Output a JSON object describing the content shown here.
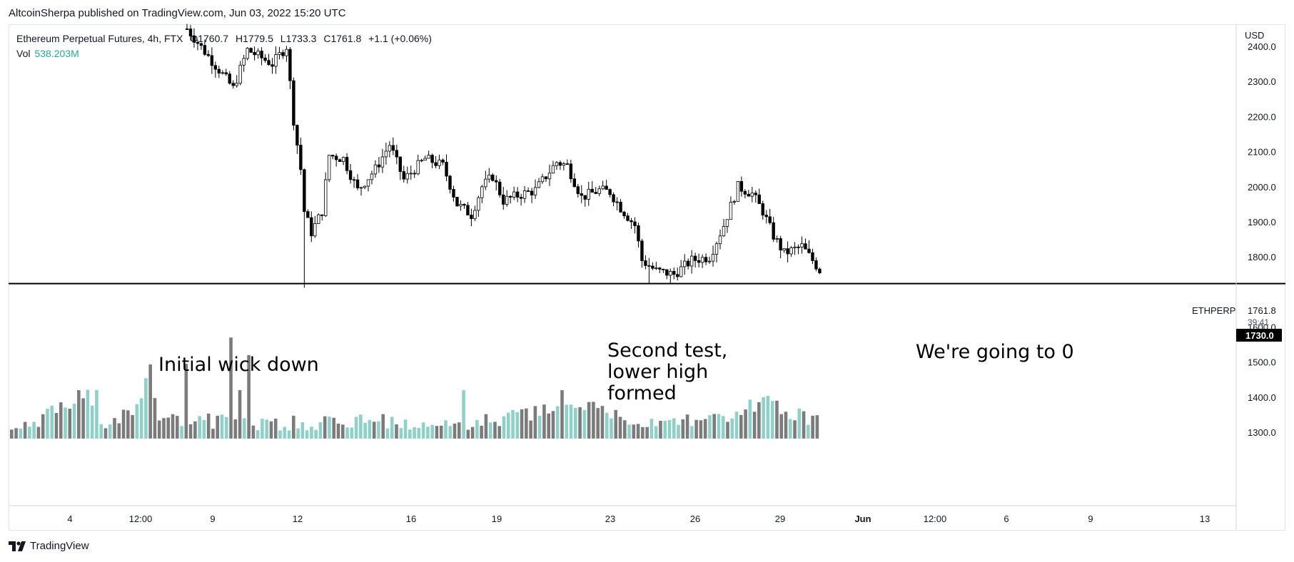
{
  "header": {
    "published": "AltcoinSherpa published on TradingView.com, Jun 03, 2022 15:20 UTC"
  },
  "legend": {
    "symbol": "Ethereum Perpetual Futures, 4h, FTX",
    "open_label": "O",
    "open": "1760.7",
    "high_label": "H",
    "high": "1779.5",
    "low_label": "L",
    "low": "1733.3",
    "close_label": "C",
    "close": "1761.8",
    "change": "+1.1 (+0.06%)",
    "vol_label": "Vol",
    "vol_value": "538.203M"
  },
  "price_axis": {
    "currency": "USD",
    "ticks": [
      "2400.0",
      "2300.0",
      "2200.0",
      "2100.0",
      "2000.0",
      "1900.0",
      "1800.0",
      "1600.0",
      "1500.0",
      "1400.0",
      "1300.0"
    ],
    "symbol_tag": "ETHPERP",
    "last_price": "1761.8",
    "countdown": "39:41",
    "line_price": "1730.0"
  },
  "time_axis": {
    "labels": [
      "4",
      "12:00",
      "9",
      "12",
      "16",
      "19",
      "23",
      "26",
      "29",
      "Jun",
      "12:00",
      "6",
      "9",
      "13"
    ]
  },
  "annotations": {
    "initial": "Initial wick down",
    "second": [
      "Second test,",
      "lower high",
      "formed"
    ],
    "zero": "We're going to 0"
  },
  "footer": {
    "brand": "TradingView"
  },
  "colors": {
    "candle_up_fill": "#ffffff",
    "candle_down_fill": "#000000",
    "candle_border": "#000000",
    "volume_up": "#8fd0c8",
    "volume_down": "#7b7b7b",
    "support_line": "#000000",
    "vol_text": "#26a69a"
  },
  "chart_data": {
    "type": "candlestick",
    "timeframe": "4h",
    "y_unit": "USD",
    "ylim": [
      1270,
      2450
    ],
    "x_range_days": [
      "May 31 2022 … Jun 13 2022 (days shown as 4 .. 13 on axis)"
    ],
    "support_level": 1730.0,
    "price_waypoints": [
      {
        "i": 0,
        "p": 2450
      },
      {
        "i": 10,
        "p": 2320
      },
      {
        "i": 13,
        "p": 2280
      },
      {
        "i": 17,
        "p": 2390
      },
      {
        "i": 24,
        "p": 2350
      },
      {
        "i": 28,
        "p": 2400
      },
      {
        "i": 30,
        "p": 2190
      },
      {
        "i": 32,
        "p": 2050
      },
      {
        "i": 33,
        "p": 1930
      },
      {
        "i": 35,
        "p": 1870
      },
      {
        "i": 38,
        "p": 1930
      },
      {
        "i": 40,
        "p": 2090
      },
      {
        "i": 44,
        "p": 2080
      },
      {
        "i": 48,
        "p": 1990
      },
      {
        "i": 53,
        "p": 2050
      },
      {
        "i": 57,
        "p": 2120
      },
      {
        "i": 61,
        "p": 2020
      },
      {
        "i": 67,
        "p": 2080
      },
      {
        "i": 72,
        "p": 2060
      },
      {
        "i": 76,
        "p": 1950
      },
      {
        "i": 80,
        "p": 1920
      },
      {
        "i": 83,
        "p": 2000
      },
      {
        "i": 86,
        "p": 2030
      },
      {
        "i": 89,
        "p": 1960
      },
      {
        "i": 93,
        "p": 1975
      },
      {
        "i": 98,
        "p": 1990
      },
      {
        "i": 104,
        "p": 2070
      },
      {
        "i": 107,
        "p": 2060
      },
      {
        "i": 111,
        "p": 1970
      },
      {
        "i": 116,
        "p": 1990
      },
      {
        "i": 119,
        "p": 1985
      },
      {
        "i": 122,
        "p": 1940
      },
      {
        "i": 126,
        "p": 1890
      },
      {
        "i": 128,
        "p": 1790
      },
      {
        "i": 132,
        "p": 1760
      },
      {
        "i": 137,
        "p": 1750
      },
      {
        "i": 142,
        "p": 1790
      },
      {
        "i": 147,
        "p": 1800
      },
      {
        "i": 151,
        "p": 1890
      },
      {
        "i": 155,
        "p": 2000
      },
      {
        "i": 159,
        "p": 1980
      },
      {
        "i": 162,
        "p": 1930
      },
      {
        "i": 165,
        "p": 1860
      },
      {
        "i": 168,
        "p": 1810
      },
      {
        "i": 173,
        "p": 1830
      },
      {
        "i": 176,
        "p": 1790
      },
      {
        "i": 178,
        "p": 1762
      }
    ],
    "volume_waypoints": [
      {
        "i": 0,
        "v": 1300
      },
      {
        "i": 6,
        "v": 1320
      },
      {
        "i": 12,
        "v": 1380
      },
      {
        "i": 17,
        "v": 1400
      },
      {
        "i": 20,
        "v": 1300
      },
      {
        "i": 27,
        "v": 1360
      },
      {
        "i": 31,
        "v": 1470
      },
      {
        "i": 33,
        "v": 1350
      },
      {
        "i": 40,
        "v": 1330
      },
      {
        "i": 60,
        "v": 1320
      },
      {
        "i": 80,
        "v": 1330
      },
      {
        "i": 98,
        "v": 1310
      },
      {
        "i": 112,
        "v": 1340
      },
      {
        "i": 128,
        "v": 1370
      },
      {
        "i": 140,
        "v": 1320
      },
      {
        "i": 150,
        "v": 1330
      },
      {
        "i": 160,
        "v": 1330
      },
      {
        "i": 168,
        "v": 1390
      },
      {
        "i": 178,
        "v": 1330
      }
    ],
    "volume_spikes": [
      {
        "i": 15,
        "v": 1420
      },
      {
        "i": 19,
        "v": 1420
      },
      {
        "i": 39,
        "v": 1495
      },
      {
        "i": 49,
        "v": 1570
      },
      {
        "i": 53,
        "v": 1520
      },
      {
        "i": 51,
        "v": 1420
      },
      {
        "i": 101,
        "v": 1420
      },
      {
        "i": 123,
        "v": 1420
      },
      {
        "i": 168,
        "v": 1400
      }
    ]
  }
}
